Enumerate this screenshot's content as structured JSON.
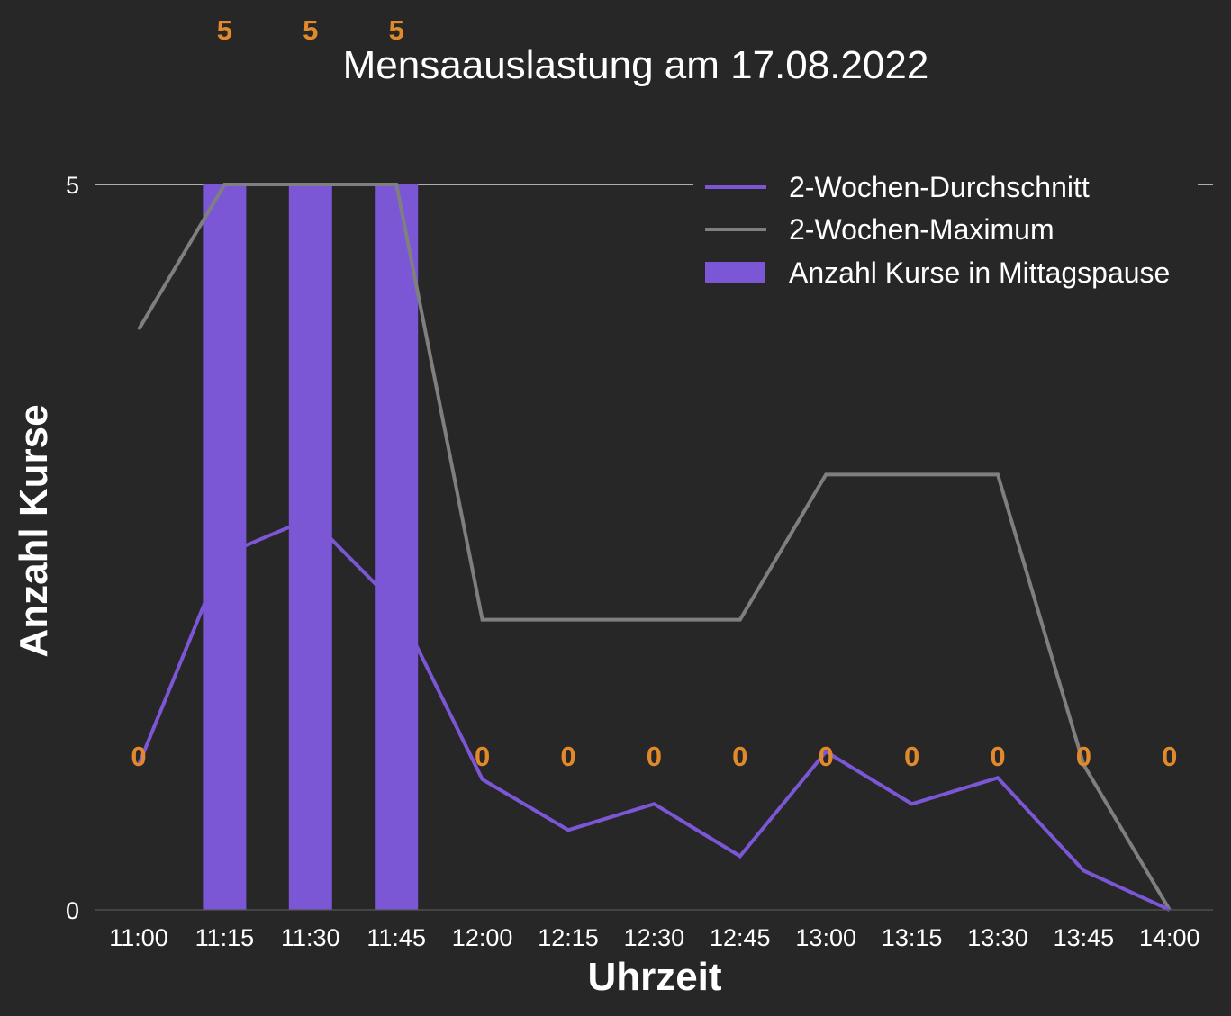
{
  "chart_data": {
    "type": "bar",
    "title": "Mensaauslastung am 17.08.2022",
    "xlabel": "Uhrzeit",
    "ylabel": "Anzahl Kurse",
    "categories": [
      "11:00",
      "11:15",
      "11:30",
      "11:45",
      "12:00",
      "12:15",
      "12:30",
      "12:45",
      "13:00",
      "13:15",
      "13:30",
      "13:45",
      "14:00"
    ],
    "ylim": [
      0,
      5
    ],
    "yticks": [
      "0",
      "5"
    ],
    "legend_position": "top-right",
    "grid": false,
    "series": [
      {
        "name": "Anzahl Kurse in Mittagspause",
        "kind": "bar",
        "color": "#7b57d6",
        "values": [
          0,
          5,
          5,
          5,
          0,
          0,
          0,
          0,
          0,
          0,
          0,
          0,
          0
        ],
        "data_labels": [
          "0",
          "5",
          "5",
          "5",
          "0",
          "0",
          "0",
          "0",
          "0",
          "0",
          "0",
          "0",
          "0"
        ],
        "label_color": "#e28a2b"
      },
      {
        "name": "2-Wochen-Durchschnitt",
        "kind": "line",
        "color": "#7b57d6",
        "values": [
          1.0,
          2.45,
          2.7,
          2.1,
          0.9,
          0.55,
          0.73,
          0.37,
          1.09,
          0.73,
          0.91,
          0.27,
          0.0
        ]
      },
      {
        "name": "2-Wochen-Maximum",
        "kind": "line",
        "color": "#7f7f7f",
        "values": [
          4.0,
          5,
          5,
          5,
          2.0,
          2.0,
          2.0,
          2.0,
          3.0,
          3.0,
          3.0,
          1.0,
          0
        ]
      }
    ],
    "reference_line": {
      "value": 5,
      "color": "#ffffff"
    }
  }
}
